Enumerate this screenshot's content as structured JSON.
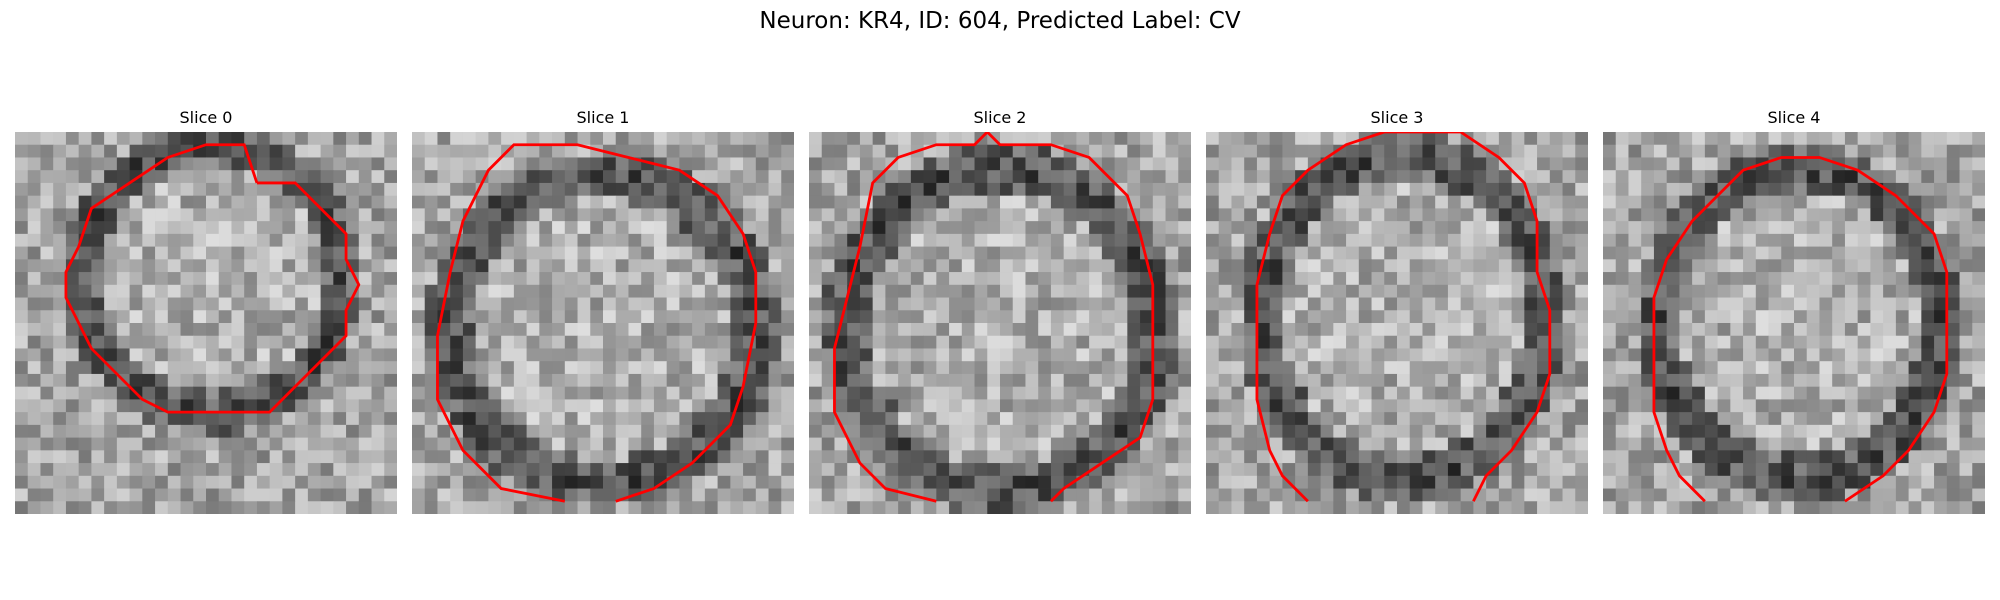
{
  "figure": {
    "title": "Neuron: KR4, ID: 604, Predicted Label: CV"
  },
  "panels": [
    {
      "title": "Slice 0",
      "image_description": "grayscale microscopy crop, bright granular cell interior surrounded by a dark ring",
      "contour_color": "#ff0000",
      "contour_points": [
        [
          19,
          4
        ],
        [
          22,
          4
        ],
        [
          24,
          6
        ],
        [
          26,
          8
        ],
        [
          26,
          10
        ],
        [
          27,
          12
        ],
        [
          26,
          14
        ],
        [
          26,
          16
        ],
        [
          24,
          18
        ],
        [
          22,
          20
        ],
        [
          20,
          22
        ],
        [
          16,
          22
        ],
        [
          12,
          22
        ],
        [
          10,
          21
        ],
        [
          8,
          19
        ],
        [
          6,
          17
        ],
        [
          5,
          15
        ],
        [
          4,
          13
        ],
        [
          4,
          11
        ],
        [
          5,
          9
        ],
        [
          6,
          6
        ],
        [
          9,
          4
        ],
        [
          12,
          2
        ],
        [
          15,
          1
        ],
        [
          18,
          1
        ],
        [
          19,
          4
        ]
      ],
      "ring_center": [
        15.5,
        11.5
      ],
      "ring_radii": [
        10.5,
        11.0
      ]
    },
    {
      "title": "Slice 1",
      "image_description": "grayscale microscopy crop, cell with darker lower-left ring and bright interior",
      "contour_color": "#ff0000",
      "contour_points": [
        [
          12,
          29
        ],
        [
          7,
          28
        ],
        [
          4,
          25
        ],
        [
          2,
          21
        ],
        [
          2,
          16
        ],
        [
          3,
          11
        ],
        [
          4,
          7
        ],
        [
          6,
          3
        ],
        [
          8,
          1
        ],
        [
          13,
          1
        ],
        [
          17,
          2
        ],
        [
          21,
          3
        ],
        [
          24,
          5
        ],
        [
          26,
          8
        ],
        [
          27,
          11
        ],
        [
          27,
          15
        ],
        [
          26,
          20
        ],
        [
          25,
          23
        ],
        [
          22,
          26
        ],
        [
          19,
          28
        ],
        [
          16,
          29
        ]
      ],
      "ring_center": [
        15.0,
        15.5
      ],
      "ring_radii": [
        12.5,
        12.5
      ],
      "open_gap": true
    },
    {
      "title": "Slice 2",
      "image_description": "grayscale microscopy crop, large bright cell body with dark surroundings",
      "contour_color": "#ff0000",
      "contour_points": [
        [
          10,
          29
        ],
        [
          6,
          28
        ],
        [
          4,
          26
        ],
        [
          2,
          22
        ],
        [
          2,
          17
        ],
        [
          3,
          13
        ],
        [
          4,
          9
        ],
        [
          5,
          4
        ],
        [
          7,
          2
        ],
        [
          10,
          1
        ],
        [
          13,
          1
        ],
        [
          14,
          0
        ],
        [
          15,
          1
        ],
        [
          19,
          1
        ],
        [
          22,
          2
        ],
        [
          25,
          5
        ],
        [
          26,
          8
        ],
        [
          27,
          12
        ],
        [
          27,
          17
        ],
        [
          27,
          21
        ],
        [
          26,
          24
        ],
        [
          23,
          26
        ],
        [
          20,
          28
        ],
        [
          19,
          29
        ]
      ],
      "ring_center": [
        15.0,
        15.5
      ],
      "ring_radii": [
        12.5,
        13.0
      ],
      "open_gap": true
    },
    {
      "title": "Slice 3",
      "image_description": "grayscale microscopy crop, lighter cell body with dark patches at left and bottom",
      "contour_color": "#ff0000",
      "contour_points": [
        [
          8,
          29
        ],
        [
          6,
          27
        ],
        [
          5,
          25
        ],
        [
          4,
          21
        ],
        [
          4,
          16
        ],
        [
          4,
          12
        ],
        [
          5,
          8
        ],
        [
          6,
          5
        ],
        [
          8,
          3
        ],
        [
          11,
          1
        ],
        [
          14,
          0
        ],
        [
          20,
          0
        ],
        [
          23,
          2
        ],
        [
          25,
          4
        ],
        [
          26,
          7
        ],
        [
          26,
          11
        ],
        [
          27,
          14
        ],
        [
          27,
          19
        ],
        [
          26,
          22
        ],
        [
          24,
          25
        ],
        [
          22,
          27
        ],
        [
          21,
          29
        ]
      ],
      "ring_center": [
        15.5,
        14.5
      ],
      "ring_radii": [
        11.5,
        13.0
      ],
      "open_gap": true
    },
    {
      "title": "Slice 4",
      "image_description": "grayscale microscopy crop, mottled cell with darker ring on upper-left",
      "contour_color": "#ff0000",
      "contour_points": [
        [
          8,
          29
        ],
        [
          6,
          27
        ],
        [
          5,
          25
        ],
        [
          4,
          22
        ],
        [
          4,
          19
        ],
        [
          4,
          16
        ],
        [
          4,
          13
        ],
        [
          5,
          10
        ],
        [
          7,
          7
        ],
        [
          9,
          5
        ],
        [
          11,
          3
        ],
        [
          14,
          2
        ],
        [
          17,
          2
        ],
        [
          20,
          3
        ],
        [
          23,
          5
        ],
        [
          26,
          8
        ],
        [
          27,
          11
        ],
        [
          27,
          15
        ],
        [
          27,
          19
        ],
        [
          26,
          22
        ],
        [
          24,
          25
        ],
        [
          22,
          27
        ],
        [
          19,
          29
        ]
      ],
      "ring_center": [
        15.5,
        15.0
      ],
      "ring_radii": [
        11.5,
        12.5
      ],
      "open_gap": true
    }
  ]
}
